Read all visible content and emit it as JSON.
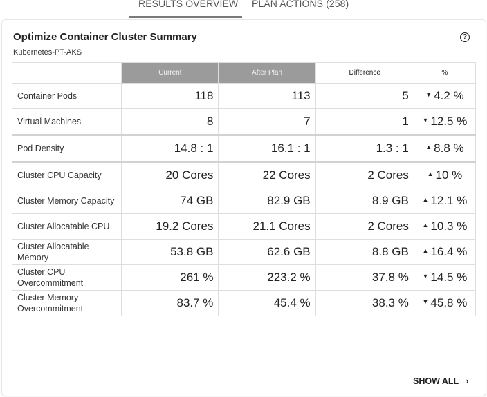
{
  "tabs": [
    {
      "label": "RESULTS OVERVIEW",
      "active": true
    },
    {
      "label": "PLAN ACTIONS (258)",
      "active": false
    }
  ],
  "card": {
    "title": "Optimize Container Cluster Summary",
    "subtitle": "Kubernetes-PT-AKS",
    "help_icon": "?",
    "table": {
      "headers": [
        "",
        "Current",
        "After Plan",
        "Difference",
        "%"
      ],
      "rows": [
        {
          "label": "Container Pods",
          "current": "118",
          "after": "113",
          "diff": "5",
          "dir": "down",
          "pct": "4.2 %"
        },
        {
          "label": "Virtual Machines",
          "current": "8",
          "after": "7",
          "diff": "1",
          "dir": "down",
          "pct": "12.5 %"
        },
        {
          "label": "Pod Density",
          "current": "14.8 : 1",
          "after": "16.1 : 1",
          "diff": "1.3 : 1",
          "dir": "up",
          "pct": "8.8 %"
        },
        {
          "label": "Cluster CPU Capacity",
          "current": "20 Cores",
          "after": "22 Cores",
          "diff": "2 Cores",
          "dir": "up",
          "pct": "10 %"
        },
        {
          "label": "Cluster Memory Capacity",
          "current": "74 GB",
          "after": "82.9 GB",
          "diff": "8.9 GB",
          "dir": "up",
          "pct": "12.1 %"
        },
        {
          "label": "Cluster Allocatable CPU",
          "current": "19.2 Cores",
          "after": "21.1 Cores",
          "diff": "2 Cores",
          "dir": "up",
          "pct": "10.3 %"
        },
        {
          "label": "Cluster Allocatable Memory",
          "current": "53.8 GB",
          "after": "62.6 GB",
          "diff": "8.8 GB",
          "dir": "up",
          "pct": "16.4 %"
        },
        {
          "label": "Cluster CPU Overcommitment",
          "current": "261 %",
          "after": "223.2 %",
          "diff": "37.8 %",
          "dir": "down",
          "pct": "14.5 %"
        },
        {
          "label": "Cluster Memory Overcommitment",
          "current": "83.7 %",
          "after": "45.4 %",
          "diff": "38.3 %",
          "dir": "down",
          "pct": "45.8 %"
        }
      ]
    },
    "footer": {
      "show_all_label": "SHOW ALL",
      "chevron": "›"
    }
  },
  "icons": {
    "up": "▲",
    "down": "▼"
  }
}
